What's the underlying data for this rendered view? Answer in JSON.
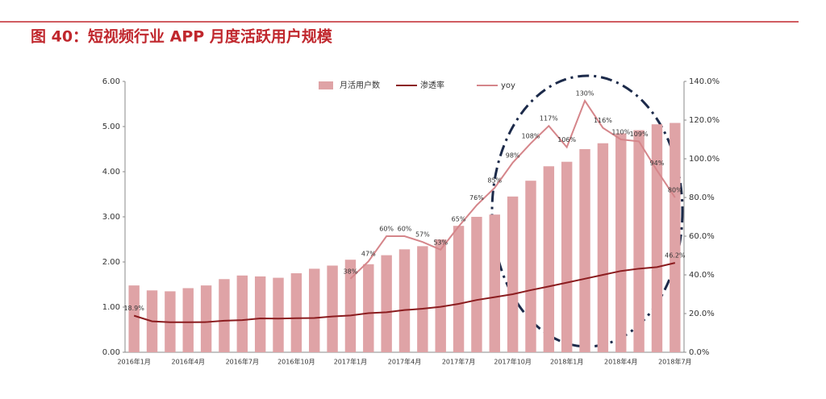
{
  "chart_data": {
    "type": "bar-line",
    "title": "图 40：短视频行业 APP 月度活跃用户规模",
    "categories": [
      "2016年1月",
      null,
      null,
      "2016年4月",
      null,
      null,
      "2016年7月",
      null,
      null,
      "2016年10月",
      null,
      null,
      "2017年1月",
      null,
      null,
      "2017年4月",
      null,
      null,
      "2017年7月",
      null,
      null,
      "2017年10月",
      null,
      null,
      "2018年1月",
      null,
      null,
      "2018年4月",
      null,
      null,
      "2018年7月"
    ],
    "series": [
      {
        "name": "月活用户数",
        "kind": "bar",
        "color": "#dfa3a6",
        "values": [
          1.48,
          1.37,
          1.35,
          1.42,
          1.48,
          1.62,
          1.7,
          1.68,
          1.65,
          1.75,
          1.85,
          1.92,
          2.05,
          1.95,
          2.15,
          2.28,
          2.35,
          2.5,
          2.8,
          3.0,
          3.05,
          3.45,
          3.8,
          4.12,
          4.22,
          4.5,
          4.63,
          4.85,
          4.92,
          5.05,
          5.08
        ]
      },
      {
        "name": "渗透率",
        "kind": "line",
        "axis": "y2",
        "color": "#8b1c1f",
        "values": [
          18.9,
          16.0,
          15.5,
          15.5,
          15.6,
          16.3,
          16.6,
          17.5,
          17.4,
          17.6,
          17.7,
          18.5,
          19.0,
          20.2,
          20.7,
          21.8,
          22.5,
          23.5,
          25.0,
          27.0,
          28.5,
          30.0,
          32.1,
          34.0,
          36.0,
          38.0,
          40.0,
          42.0,
          43.2,
          44.0,
          46.2
        ],
        "value_labels": [
          "18.9%",
          null,
          null,
          null,
          null,
          null,
          null,
          null,
          null,
          null,
          null,
          null,
          null,
          null,
          null,
          null,
          null,
          null,
          null,
          null,
          null,
          null,
          null,
          null,
          null,
          null,
          null,
          null,
          null,
          null,
          "46.2%"
        ]
      },
      {
        "name": "yoy",
        "kind": "line",
        "axis": "y2",
        "color": "#d5858a",
        "values": [
          null,
          null,
          null,
          null,
          null,
          null,
          null,
          null,
          null,
          null,
          null,
          null,
          38,
          47,
          60,
          60,
          57,
          53,
          65,
          76,
          85,
          98,
          108,
          117,
          106,
          130,
          116,
          110,
          109,
          94,
          80
        ],
        "value_labels": [
          null,
          null,
          null,
          null,
          null,
          null,
          null,
          null,
          null,
          null,
          null,
          null,
          "38%",
          "47%",
          "60%",
          "60%",
          "57%",
          "53%",
          "65%",
          "76%",
          "85%",
          "98%",
          "108%",
          "117%",
          "106%",
          "130%",
          "116%",
          "110%",
          "109%",
          "94%",
          "80%"
        ]
      }
    ],
    "ylim": [
      0,
      6
    ],
    "yticks": [
      {
        "value": 0,
        "label": "0.00"
      },
      {
        "value": 1,
        "label": "1.00"
      },
      {
        "value": 2,
        "label": "2.00"
      },
      {
        "value": 3,
        "label": "3.00"
      },
      {
        "value": 4,
        "label": "4.00"
      },
      {
        "value": 5,
        "label": "5.00"
      },
      {
        "value": 6,
        "label": "6.00"
      }
    ],
    "y2lim": [
      0,
      140
    ],
    "y2ticks": [
      {
        "value": 0,
        "label": "0.0%"
      },
      {
        "value": 20,
        "label": "20.0%"
      },
      {
        "value": 40,
        "label": "40.0%"
      },
      {
        "value": 60,
        "label": "60.0%"
      },
      {
        "value": 80,
        "label": "80.0%"
      },
      {
        "value": 100,
        "label": "100.0%"
      },
      {
        "value": 120,
        "label": "120.0%"
      },
      {
        "value": 140,
        "label": "140.0%"
      }
    ],
    "legend": "top"
  }
}
